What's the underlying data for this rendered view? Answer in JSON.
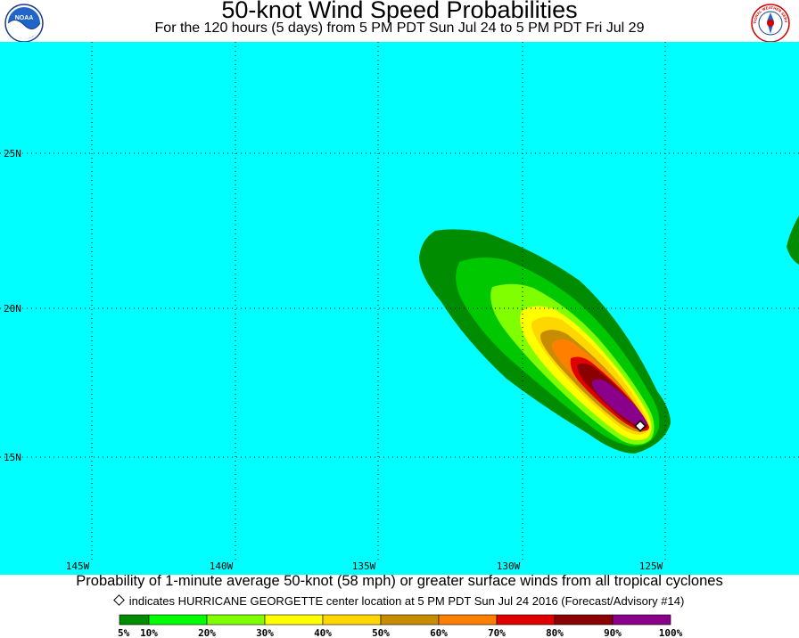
{
  "header": {
    "title": "50-knot Wind Speed Probabilities",
    "subtitle": "For the 120 hours (5 days) from 5 PM PDT Sun Jul 24 to 5 PM PDT Fri Jul 29",
    "left_logo": {
      "icon": "noaa-logo-icon",
      "text": "NOAA"
    },
    "right_logo": {
      "icon": "nws-logo-icon",
      "text": "NATIONAL WEATHER SERVICE"
    }
  },
  "map": {
    "ocean_color": "#00ffff",
    "latitude_labels": [
      "25N",
      "20N",
      "15N"
    ],
    "longitude_labels": [
      "145W",
      "140W",
      "135W",
      "130W",
      "125W"
    ],
    "grid": "dotted",
    "storm_marker": {
      "icon": "diamond-icon",
      "lat": 16.1,
      "lon": -125.4
    }
  },
  "caption": "Probability of 1-minute average 50-knot (58 mph) or greater surface winds from all tropical cyclones",
  "legend_note": "indicates HURRICANE GEORGETTE center location at 5 PM PDT Sun Jul 24 2016 (Forecast/Advisory #14)",
  "colorbar": {
    "labels": [
      "5%",
      "10%",
      "20%",
      "30%",
      "40%",
      "50%",
      "60%",
      "70%",
      "80%",
      "90%",
      "100%"
    ],
    "colors": [
      "#008c00",
      "#00c800",
      "#00ff00",
      "#80ff00",
      "#ffff00",
      "#ffd700",
      "#c88c00",
      "#ff7f00",
      "#e00000",
      "#8b0000",
      "#8b008b"
    ]
  }
}
